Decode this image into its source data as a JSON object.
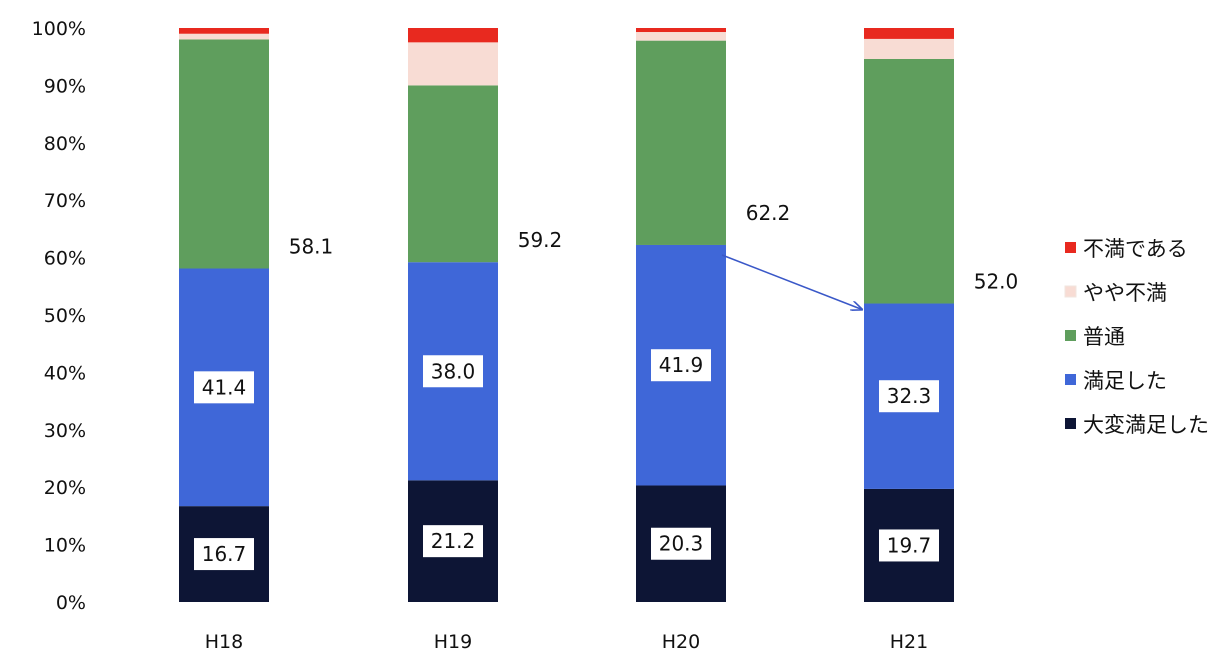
{
  "chart_data": {
    "type": "bar",
    "stacked": true,
    "categories": [
      "H18",
      "H19",
      "H20",
      "H21"
    ],
    "ylim": [
      0,
      100
    ],
    "yticks": [
      "0%",
      "10%",
      "20%",
      "30%",
      "40%",
      "50%",
      "60%",
      "70%",
      "80%",
      "90%",
      "100%"
    ],
    "grid": false,
    "legend_position": "right",
    "series": [
      {
        "name": "大変満足した",
        "color": "#0d1535",
        "values": [
          16.7,
          21.2,
          20.3,
          19.7
        ]
      },
      {
        "name": "満足した",
        "color": "#3f67d8",
        "values": [
          41.4,
          38.0,
          41.9,
          32.3
        ]
      },
      {
        "name": "普通",
        "color": "#5f9e5d",
        "values": [
          39.9,
          30.8,
          35.6,
          42.6
        ]
      },
      {
        "name": "やや不満",
        "color": "#f8dcd4",
        "values": [
          1.0,
          7.5,
          1.5,
          3.5
        ]
      },
      {
        "name": "不満である",
        "color": "#e8291f",
        "values": [
          1.0,
          2.5,
          0.7,
          1.9
        ]
      }
    ],
    "segment_labels": {
      "大変満足した": [
        "16.7",
        "21.2",
        "20.3",
        "19.7"
      ],
      "満足した": [
        "41.4",
        "38.0",
        "41.9",
        "32.3"
      ]
    },
    "cumulative_labels": [
      "58.1",
      "59.2",
      "62.2",
      "52.0"
    ],
    "annotations": [
      {
        "type": "arrow",
        "from_category": "H20",
        "to_category": "H21",
        "from_value": 62.2,
        "to_value": 52.0,
        "color": "#3a58c8"
      }
    ]
  }
}
